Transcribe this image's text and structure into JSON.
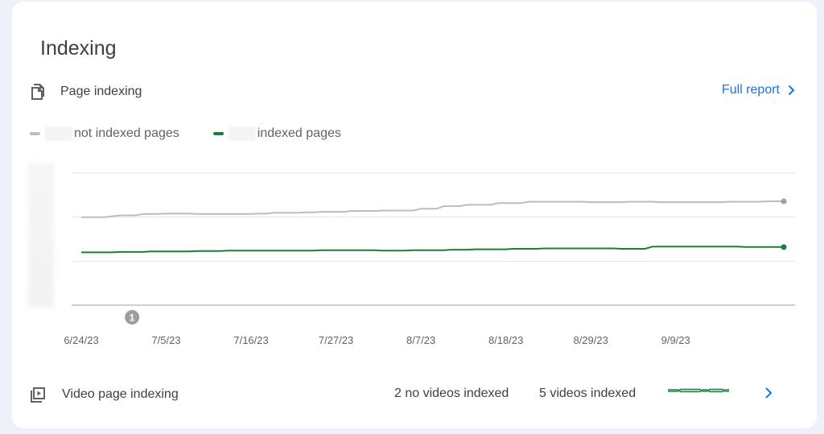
{
  "card": {
    "title": "Indexing",
    "page_indexing": {
      "label": "Page indexing",
      "icon": "pages-copy-icon"
    },
    "full_report": {
      "label": "Full report",
      "icon": "chevron-right-icon",
      "color": "#1a73e8"
    },
    "legend": [
      {
        "label": "not indexed pages",
        "color": "#bdbdbd"
      },
      {
        "label": "indexed pages",
        "color": "#188038"
      }
    ],
    "video_indexing": {
      "label": "Video page indexing",
      "icon": "video-page-icon",
      "no_videos": "2 no videos indexed",
      "videos": "5 videos indexed"
    }
  },
  "chart_data": {
    "type": "line",
    "x_tick_labels": [
      "6/24/23",
      "7/5/23",
      "7/16/23",
      "7/27/23",
      "8/7/23",
      "8/18/23",
      "8/29/23",
      "9/9/23"
    ],
    "annotation": {
      "label": "1",
      "date": "7/1/23"
    },
    "grid": true,
    "ylim": [
      0,
      3
    ],
    "series": [
      {
        "name": "not indexed pages",
        "color": "#bdbdbd",
        "values": [
          2.0,
          2.0,
          2.0,
          2.0,
          2.02,
          2.04,
          2.04,
          2.04,
          2.07,
          2.07,
          2.07,
          2.08,
          2.08,
          2.08,
          2.08,
          2.07,
          2.07,
          2.07,
          2.07,
          2.07,
          2.07,
          2.07,
          2.07,
          2.08,
          2.08,
          2.1,
          2.1,
          2.1,
          2.1,
          2.11,
          2.11,
          2.12,
          2.12,
          2.12,
          2.12,
          2.14,
          2.14,
          2.14,
          2.14,
          2.15,
          2.15,
          2.15,
          2.15,
          2.15,
          2.19,
          2.19,
          2.19,
          2.25,
          2.25,
          2.25,
          2.28,
          2.28,
          2.28,
          2.28,
          2.32,
          2.32,
          2.32,
          2.32,
          2.35,
          2.35,
          2.35,
          2.35,
          2.35,
          2.35,
          2.35,
          2.35,
          2.34,
          2.34,
          2.34,
          2.34,
          2.34,
          2.35,
          2.35,
          2.35,
          2.35,
          2.34,
          2.34,
          2.34,
          2.34,
          2.34,
          2.34,
          2.34,
          2.34,
          2.34,
          2.35,
          2.35,
          2.35,
          2.35,
          2.35,
          2.36,
          2.36,
          2.36
        ]
      },
      {
        "name": "indexed pages",
        "color": "#188038",
        "values": [
          1.2,
          1.2,
          1.2,
          1.2,
          1.2,
          1.21,
          1.21,
          1.21,
          1.21,
          1.22,
          1.22,
          1.22,
          1.22,
          1.22,
          1.22,
          1.23,
          1.23,
          1.23,
          1.23,
          1.24,
          1.24,
          1.24,
          1.24,
          1.24,
          1.24,
          1.24,
          1.24,
          1.24,
          1.24,
          1.24,
          1.24,
          1.25,
          1.25,
          1.25,
          1.25,
          1.25,
          1.25,
          1.25,
          1.25,
          1.24,
          1.24,
          1.24,
          1.24,
          1.25,
          1.25,
          1.25,
          1.25,
          1.25,
          1.26,
          1.26,
          1.26,
          1.27,
          1.27,
          1.27,
          1.27,
          1.27,
          1.28,
          1.28,
          1.28,
          1.28,
          1.29,
          1.29,
          1.29,
          1.29,
          1.29,
          1.29,
          1.29,
          1.29,
          1.29,
          1.29,
          1.28,
          1.28,
          1.28,
          1.28,
          1.33,
          1.33,
          1.33,
          1.33,
          1.33,
          1.33,
          1.33,
          1.33,
          1.33,
          1.33,
          1.33,
          1.33,
          1.32,
          1.32,
          1.32,
          1.32,
          1.32,
          1.32
        ]
      }
    ]
  },
  "video_sparkline": {
    "color": "#188038",
    "values": [
      0.5,
      0.5,
      0.5,
      0.5,
      0.62,
      0.62,
      0.62,
      0.62,
      0.62,
      0.62,
      0.62,
      0.5,
      0.5,
      0.62,
      0.62,
      0.62,
      0.62,
      0.62,
      0.5,
      0.5
    ]
  }
}
